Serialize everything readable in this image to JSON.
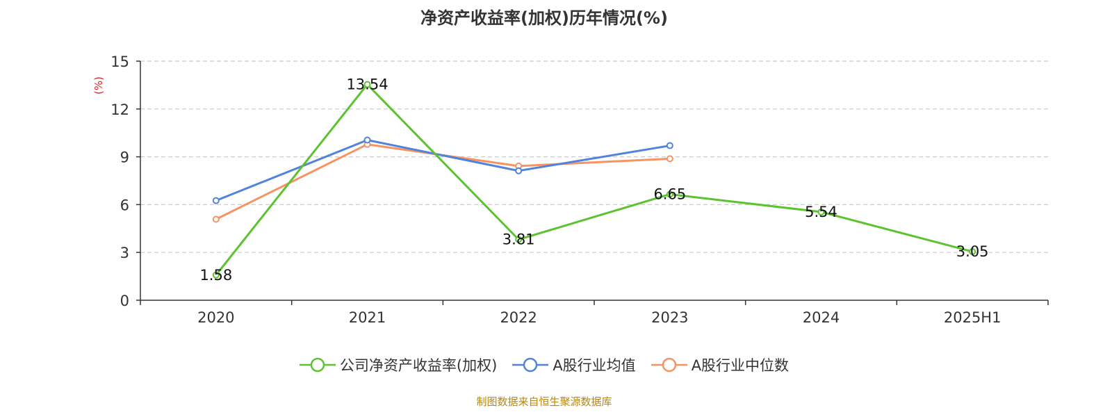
{
  "title": "净资产收益率(加权)历年情况(%)",
  "source": "制图数据来自恒生聚源数据库",
  "chart_data": {
    "type": "line",
    "title": "净资产收益率(加权)历年情况(%)",
    "ylabel": "(%)",
    "ylim": [
      0,
      15
    ],
    "yticks": [
      0,
      3,
      6,
      9,
      12,
      15
    ],
    "grid": true,
    "legend_position": "bottom",
    "categories": [
      "2020",
      "2021",
      "2022",
      "2023",
      "2024",
      "2025H1"
    ],
    "series": [
      {
        "name": "公司净资产收益率(加权)",
        "color": "#5cc230",
        "values": [
          1.58,
          13.54,
          3.81,
          6.65,
          5.54,
          3.05
        ],
        "labels": [
          "1.58",
          "13.54",
          "3.81",
          "6.65",
          "5.54",
          "3.05"
        ]
      },
      {
        "name": "A股行业均值",
        "color": "#4f83dc",
        "values": [
          6.25,
          10.05,
          8.12,
          9.7,
          null,
          null
        ]
      },
      {
        "name": "A股行业中位数",
        "color": "#f79263",
        "values": [
          5.08,
          9.78,
          8.42,
          8.88,
          null,
          null
        ]
      }
    ]
  }
}
